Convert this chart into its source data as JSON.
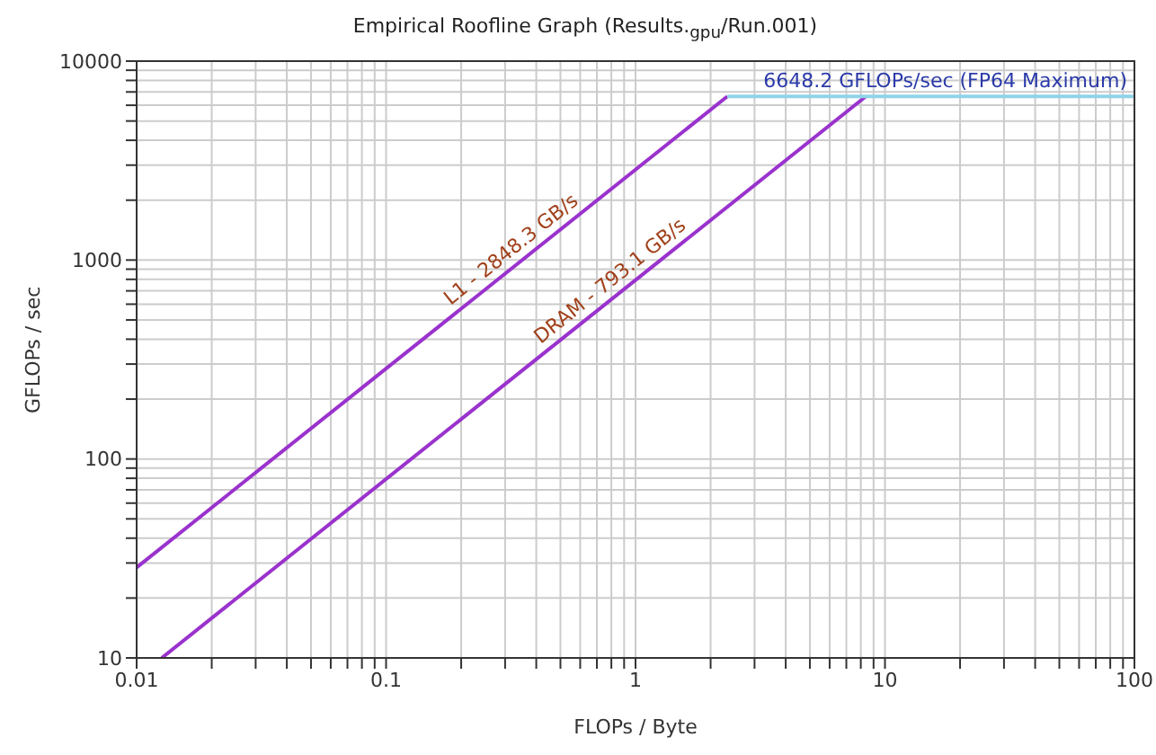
{
  "chart_data": {
    "type": "line",
    "title": "Empirical Roofline Graph (Results.$_{gpu}$/Run.001)",
    "xlabel": "FLOPs / Byte",
    "ylabel": "GFLOPs / sec",
    "log": "xy",
    "grid": true,
    "legend": false,
    "marker": "none",
    "line_style": "solid",
    "xlim": [
      0.01,
      100
    ],
    "xticks": [
      0.01,
      {
        "value": 0.02,
        "label": null
      },
      {
        "value": 0.03,
        "label": null
      },
      {
        "value": 0.04,
        "label": null
      },
      {
        "value": 0.05,
        "label": null
      },
      {
        "value": 0.06,
        "label": null
      },
      {
        "value": 0.07,
        "label": null
      },
      {
        "value": 0.08,
        "label": null
      },
      {
        "value": 0.09,
        "label": null
      },
      0.1,
      {
        "value": 0.2,
        "label": null
      },
      {
        "value": 0.3,
        "label": null
      },
      {
        "value": 0.4,
        "label": null
      },
      {
        "value": 0.5,
        "label": null
      },
      {
        "value": 0.6,
        "label": null
      },
      {
        "value": 0.7,
        "label": null
      },
      {
        "value": 0.8,
        "label": null
      },
      {
        "value": 0.9,
        "label": null
      },
      1,
      {
        "value": 2,
        "label": null
      },
      {
        "value": 3,
        "label": null
      },
      {
        "value": 4,
        "label": null
      },
      {
        "value": 5,
        "label": null
      },
      {
        "value": 6,
        "label": null
      },
      {
        "value": 7,
        "label": null
      },
      {
        "value": 8,
        "label": null
      },
      {
        "value": 9,
        "label": null
      },
      10,
      {
        "value": 20,
        "label": null
      },
      {
        "value": 30,
        "label": null
      },
      {
        "value": 40,
        "label": null
      },
      {
        "value": 50,
        "label": null
      },
      {
        "value": 60,
        "label": null
      },
      {
        "value": 70,
        "label": null
      },
      {
        "value": 80,
        "label": null
      },
      {
        "value": 90,
        "label": null
      },
      100
    ],
    "ylim": [
      10,
      10000
    ],
    "yticks": [
      10,
      {
        "value": 20,
        "label": null
      },
      {
        "value": 30,
        "label": null
      },
      {
        "value": 40,
        "label": null
      },
      {
        "value": 50,
        "label": null
      },
      {
        "value": 60,
        "label": null
      },
      {
        "value": 70,
        "label": null
      },
      {
        "value": 80,
        "label": null
      },
      {
        "value": 90,
        "label": null
      },
      100,
      {
        "value": 200,
        "label": null
      },
      {
        "value": 300,
        "label": null
      },
      {
        "value": 400,
        "label": null
      },
      {
        "value": 500,
        "label": null
      },
      {
        "value": 600,
        "label": null
      },
      {
        "value": 700,
        "label": null
      },
      {
        "value": 800,
        "label": null
      },
      {
        "value": 900,
        "label": null
      },
      1000,
      {
        "value": 2000,
        "label": null
      },
      {
        "value": 3000,
        "label": null
      },
      {
        "value": 4000,
        "label": null
      },
      {
        "value": 5000,
        "label": null
      },
      {
        "value": 6000,
        "label": null
      },
      {
        "value": 7000,
        "label": null
      },
      {
        "value": 8000,
        "label": null
      },
      {
        "value": 9000,
        "label": null
      },
      10000
    ],
    "series": [
      {
        "name": "L1 - 2848.3 GB/s",
        "color": "#9a32cd",
        "x": [
          0.01,
          2.334
        ],
        "values": [
          28.48,
          6648.2
        ]
      },
      {
        "name": "DRAM - 793.1 GB/s",
        "color": "#9a32cd",
        "x": [
          0.01261,
          8.383
        ],
        "values": [
          10,
          6648.2
        ]
      },
      {
        "name": "6648.2 GFLOPs/sec (FP64 Maximum)",
        "color": "#8fd3e8",
        "x": [
          2.334,
          100
        ],
        "values": [
          6648.2,
          6648.2
        ]
      }
    ]
  }
}
